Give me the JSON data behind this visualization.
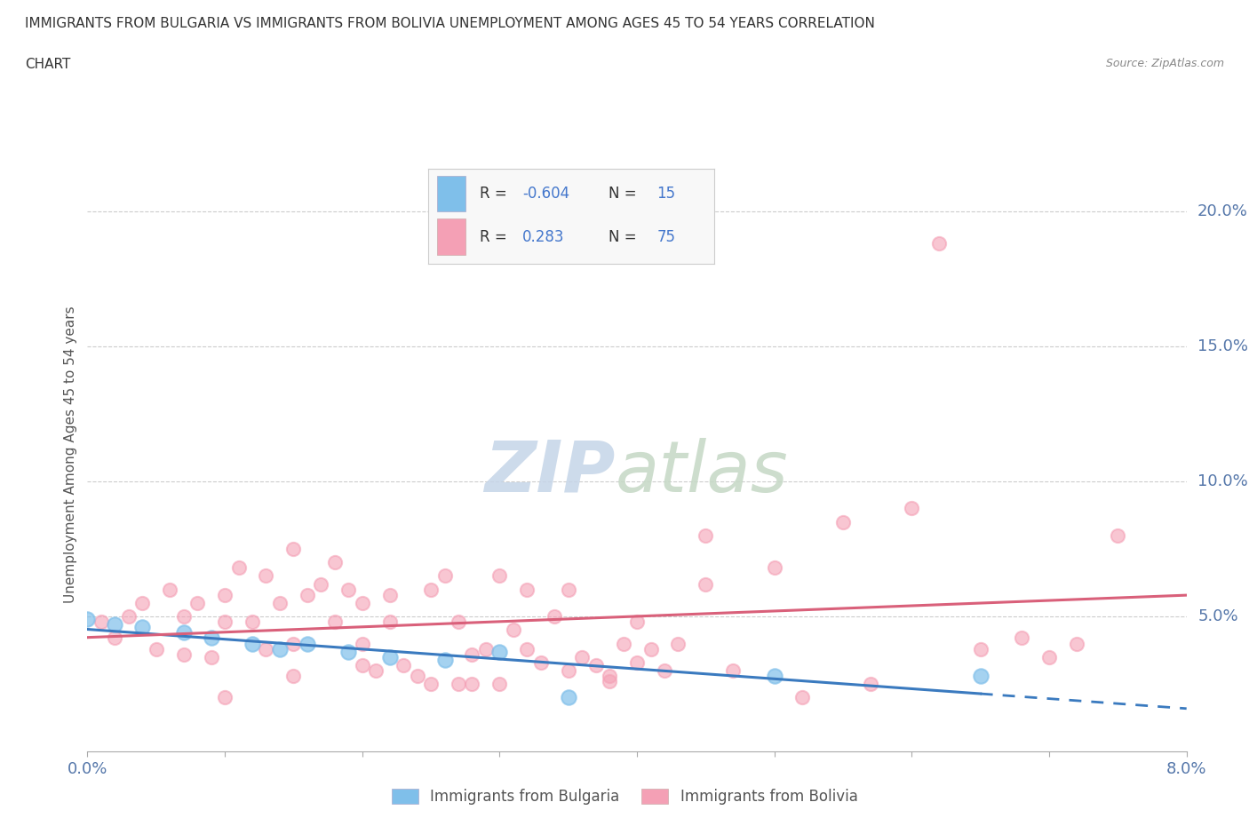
{
  "title_line1": "IMMIGRANTS FROM BULGARIA VS IMMIGRANTS FROM BOLIVIA UNEMPLOYMENT AMONG AGES 45 TO 54 YEARS CORRELATION",
  "title_line2": "CHART",
  "source_text": "Source: ZipAtlas.com",
  "ylabel": "Unemployment Among Ages 45 to 54 years",
  "xlim": [
    0.0,
    0.08
  ],
  "ylim": [
    0.0,
    0.22
  ],
  "xticks": [
    0.0,
    0.01,
    0.02,
    0.03,
    0.04,
    0.05,
    0.06,
    0.07,
    0.08
  ],
  "yticks_right": [
    0.05,
    0.1,
    0.15,
    0.2
  ],
  "ytick_right_labels": [
    "5.0%",
    "10.0%",
    "15.0%",
    "20.0%"
  ],
  "bulgaria_color": "#7fbfea",
  "bolivia_color": "#f4a0b5",
  "bulgaria_line_color": "#3a7abf",
  "bolivia_line_color": "#d9607a",
  "background_color": "#ffffff",
  "legend_label_bulgaria": "Immigrants from Bulgaria",
  "legend_label_bolivia": "Immigrants from Bolivia",
  "bulgaria_R": -0.604,
  "bulgaria_N": 15,
  "bolivia_R": 0.283,
  "bolivia_N": 75,
  "bulgaria_scatter_x": [
    0.0,
    0.002,
    0.004,
    0.007,
    0.009,
    0.012,
    0.014,
    0.016,
    0.019,
    0.022,
    0.026,
    0.03,
    0.035,
    0.05,
    0.065
  ],
  "bulgaria_scatter_y": [
    0.049,
    0.047,
    0.046,
    0.044,
    0.042,
    0.04,
    0.038,
    0.04,
    0.037,
    0.035,
    0.034,
    0.037,
    0.02,
    0.028,
    0.028
  ],
  "bolivia_scatter_x": [
    0.001,
    0.002,
    0.003,
    0.004,
    0.005,
    0.006,
    0.007,
    0.007,
    0.008,
    0.009,
    0.01,
    0.01,
    0.011,
    0.012,
    0.013,
    0.013,
    0.014,
    0.015,
    0.015,
    0.016,
    0.017,
    0.018,
    0.019,
    0.02,
    0.02,
    0.021,
    0.022,
    0.023,
    0.024,
    0.025,
    0.026,
    0.027,
    0.028,
    0.028,
    0.029,
    0.03,
    0.031,
    0.032,
    0.033,
    0.034,
    0.035,
    0.036,
    0.037,
    0.038,
    0.039,
    0.04,
    0.041,
    0.043,
    0.045,
    0.047,
    0.05,
    0.052,
    0.055,
    0.057,
    0.06,
    0.062,
    0.065,
    0.068,
    0.07,
    0.072,
    0.075,
    0.01,
    0.015,
    0.02,
    0.025,
    0.03,
    0.035,
    0.04,
    0.045,
    0.018,
    0.022,
    0.027,
    0.032,
    0.038,
    0.042
  ],
  "bolivia_scatter_y": [
    0.048,
    0.042,
    0.05,
    0.055,
    0.038,
    0.06,
    0.036,
    0.05,
    0.055,
    0.035,
    0.058,
    0.048,
    0.068,
    0.048,
    0.038,
    0.065,
    0.055,
    0.075,
    0.04,
    0.058,
    0.062,
    0.048,
    0.06,
    0.04,
    0.055,
    0.03,
    0.048,
    0.032,
    0.028,
    0.06,
    0.065,
    0.048,
    0.036,
    0.025,
    0.038,
    0.065,
    0.045,
    0.038,
    0.033,
    0.05,
    0.03,
    0.035,
    0.032,
    0.028,
    0.04,
    0.048,
    0.038,
    0.04,
    0.062,
    0.03,
    0.068,
    0.02,
    0.085,
    0.025,
    0.09,
    0.188,
    0.038,
    0.042,
    0.035,
    0.04,
    0.08,
    0.02,
    0.028,
    0.032,
    0.025,
    0.025,
    0.06,
    0.033,
    0.08,
    0.07,
    0.058,
    0.025,
    0.06,
    0.026,
    0.03
  ],
  "watermark_zip_color": "#c5d5e8",
  "watermark_atlas_color": "#c5d8c5"
}
